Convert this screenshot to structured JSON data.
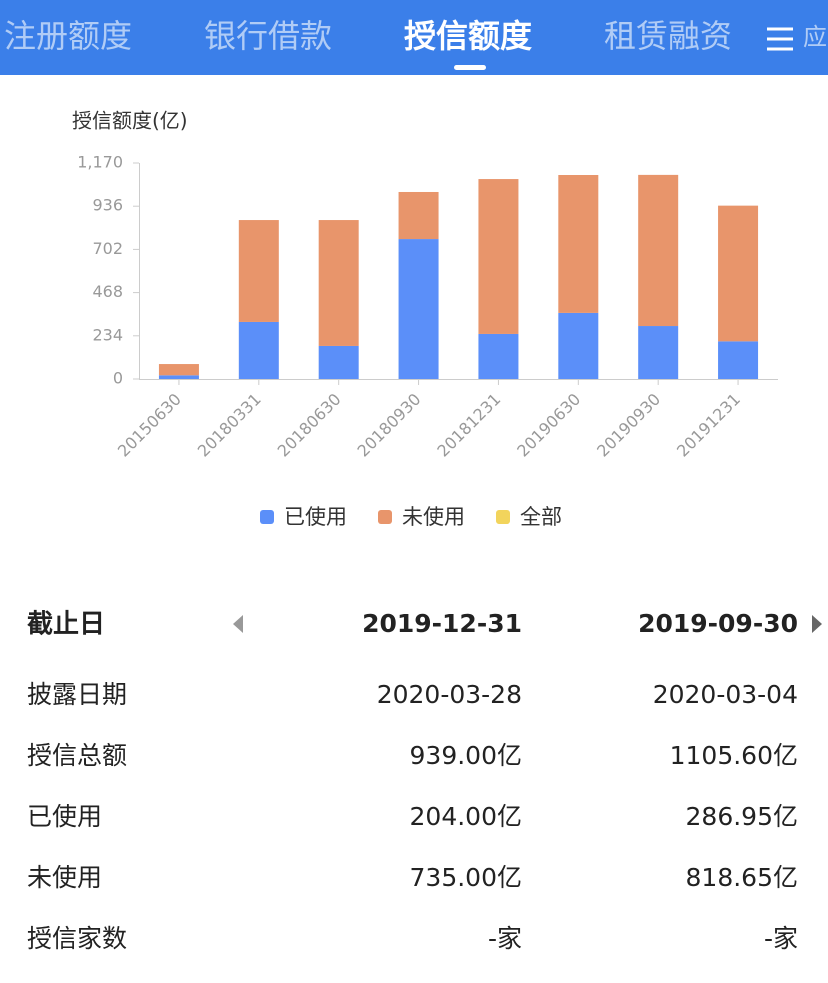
{
  "tabs": [
    "注册额度",
    "银行借款",
    "授信额度",
    "租赁融资",
    "应"
  ],
  "active_tab": 2,
  "chart_data": {
    "type": "stacked_bar",
    "y_label": "授信额度(亿)",
    "categories": [
      "20150630",
      "20180331",
      "20180630",
      "20180930",
      "20181231",
      "20190630",
      "20190930",
      "20191231"
    ],
    "series": [
      {
        "name": "已使用",
        "color": "#5b8ff9",
        "values": [
          20,
          309,
          179,
          758,
          244,
          358,
          286.95,
          204
        ]
      },
      {
        "name": "未使用",
        "color": "#e8956b",
        "values": [
          61,
          552,
          682,
          255,
          839,
          747,
          818.65,
          735
        ]
      },
      {
        "name": "全部",
        "color": "#f2d45c",
        "values": [
          null,
          null,
          null,
          null,
          null,
          null,
          null,
          null
        ]
      }
    ],
    "ylim": [
      0,
      1170
    ],
    "yticks": [
      0,
      234,
      468,
      702,
      936,
      {
        "value": 1170,
        "label": "1,170"
      }
    ]
  },
  "table": {
    "header": [
      "截止日",
      "2019-12-31",
      "2019-09-30"
    ],
    "rows": [
      [
        "披露日期",
        "2020-03-28",
        "2020-03-04"
      ],
      [
        "授信总额",
        "939.00亿",
        "1105.60亿"
      ],
      [
        "已使用",
        "204.00亿",
        "286.95亿"
      ],
      [
        "未使用",
        "735.00亿",
        "818.65亿"
      ],
      [
        "授信家数",
        "-家",
        "-家"
      ]
    ]
  }
}
